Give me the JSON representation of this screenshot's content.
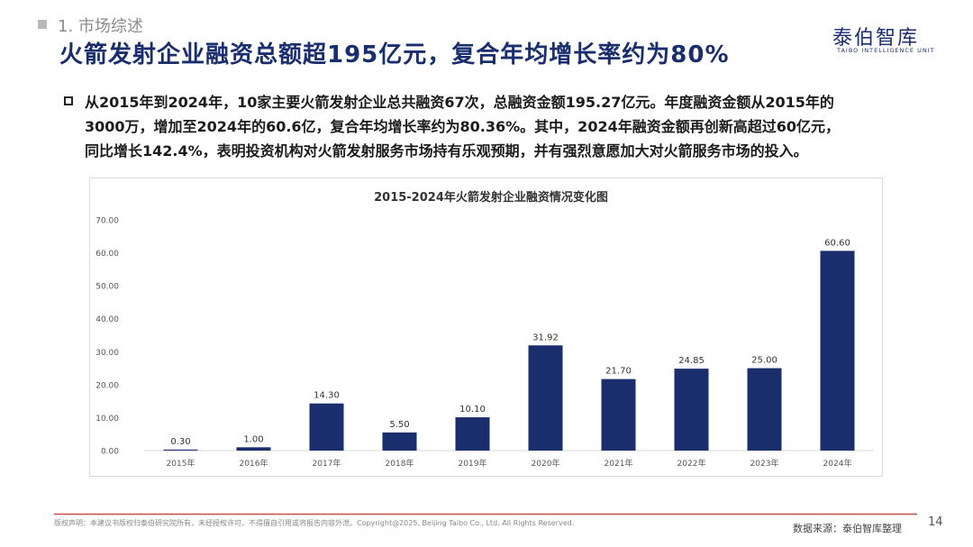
{
  "header": {
    "section": "1. 市场综述",
    "title": "火箭发射企业融资总额超195亿元，复合年均增长率约为80%",
    "logo_cn": "泰伯智库",
    "logo_en": "TAIBO INTELLIGENCE UNIT"
  },
  "summary": {
    "lines": [
      "从2015年到2024年，10家主要火箭发射企业总共融资67次，总融资金额195.27亿元。年度融资金额从2015年的",
      "3000万，增加至2024年的60.6亿，复合年均增长率约为80.36%。其中，2024年融资金额再创新高超过60亿元，",
      "同比增长142.4%，表明投资机构对火箭发射服务市场持有乐观预期，并有强烈意愿加大对火箭服务市场的投入。"
    ]
  },
  "chart_data": {
    "type": "bar",
    "title": "2015-2024年火箭发射企业融资情况变化图",
    "categories": [
      "2015年",
      "2016年",
      "2017年",
      "2018年",
      "2019年",
      "2020年",
      "2021年",
      "2022年",
      "2023年",
      "2024年"
    ],
    "values": [
      0.3,
      1.0,
      14.3,
      5.5,
      10.1,
      31.92,
      21.7,
      24.85,
      25.0,
      60.6
    ],
    "value_labels": [
      "0.30",
      "1.00",
      "14.30",
      "5.50",
      "10.10",
      "31.92",
      "21.70",
      "24.85",
      "25.00",
      "60.60"
    ],
    "yticks": [
      "0.00",
      "10.00",
      "20.00",
      "30.00",
      "40.00",
      "50.00",
      "60.00",
      "70.00"
    ],
    "ylim": [
      0,
      70
    ],
    "xlabel": "",
    "ylabel": "",
    "grid": false,
    "bar_color": "#1a2e6e"
  },
  "footer": {
    "copyright": "版权声明：本建议书版权归泰伯研究院所有，未经授权许可，不得擅自引用或将报告内容外泄。Copyright@2025, Beijing Taibo Co., Ltd. All Rights Reserved.",
    "source": "数据来源：泰伯智库整理",
    "page_number": "14"
  }
}
